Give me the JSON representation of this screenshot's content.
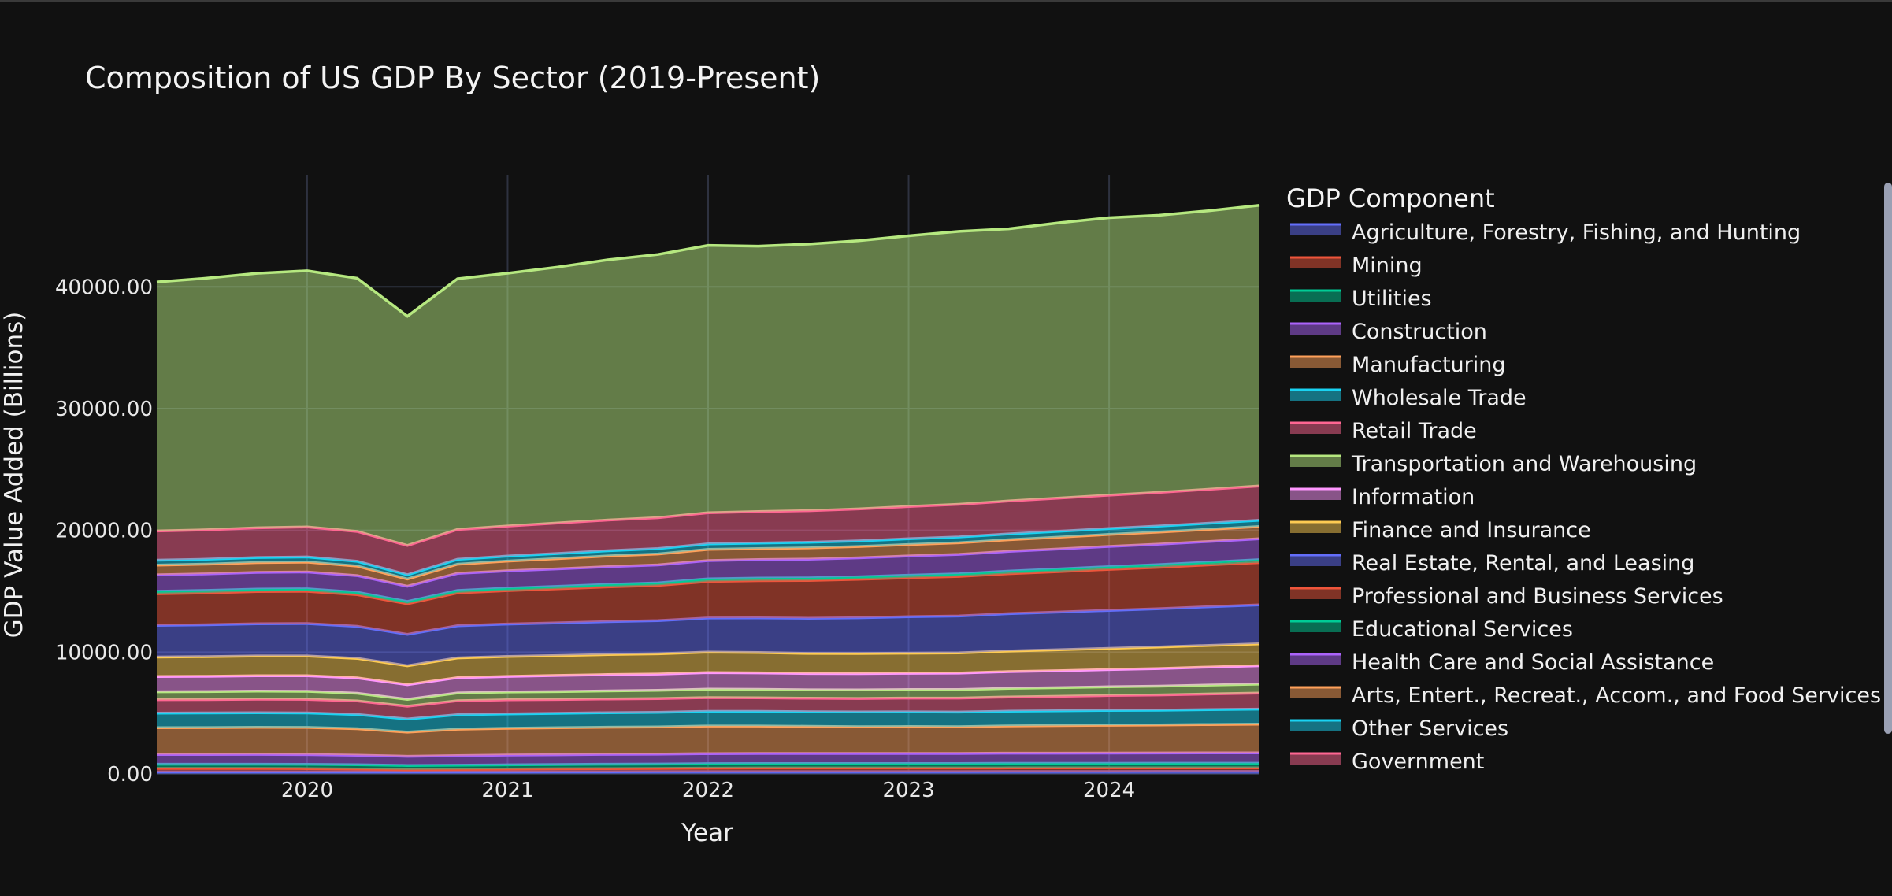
{
  "chart_data": {
    "type": "area",
    "stacked": true,
    "title": "Composition of US GDP By Sector (2019-Present)",
    "xlabel": "Year",
    "ylabel": "GDP Value Added (Billions)",
    "legend_title": "GDP Component",
    "legend_position": "right",
    "grid": true,
    "x": [
      2019.25,
      2019.5,
      2019.75,
      2020.0,
      2020.25,
      2020.5,
      2020.75,
      2021.0,
      2021.25,
      2021.5,
      2021.75,
      2022.0,
      2022.25,
      2022.5,
      2022.75,
      2023.0,
      2023.25,
      2023.5,
      2023.75,
      2024.0,
      2024.25,
      2024.5,
      2024.75
    ],
    "xlim": [
      2019.25,
      2024.75
    ],
    "x_ticks": [
      2020,
      2021,
      2022,
      2023,
      2024
    ],
    "x_tick_labels": [
      "2020",
      "2021",
      "2022",
      "2023",
      "2024"
    ],
    "ylim": [
      0,
      49200
    ],
    "y_ticks": [
      0,
      10000,
      20000,
      30000,
      40000
    ],
    "y_tick_labels": [
      "0.00",
      "10000.00",
      "20000.00",
      "30000.00",
      "40000.00"
    ],
    "series": [
      {
        "name": "Agriculture, Forestry, Fishing, and Hunting",
        "color": "#636efa",
        "values": [
          170,
          170,
          170,
          170,
          170,
          170,
          170,
          170,
          175,
          180,
          185,
          190,
          190,
          190,
          190,
          190,
          190,
          195,
          195,
          195,
          200,
          200,
          200
        ]
      },
      {
        "name": "Mining",
        "color": "#ef553b",
        "values": [
          280,
          280,
          280,
          270,
          240,
          180,
          200,
          230,
          250,
          260,
          270,
          290,
          300,
          300,
          300,
          300,
          300,
          300,
          300,
          300,
          300,
          300,
          300
        ]
      },
      {
        "name": "Utilities",
        "color": "#00cc96",
        "values": [
          350,
          350,
          350,
          350,
          350,
          350,
          350,
          350,
          350,
          360,
          360,
          370,
          370,
          370,
          370,
          370,
          370,
          380,
          380,
          380,
          380,
          380,
          380
        ]
      },
      {
        "name": "Construction",
        "color": "#ab63fa",
        "values": [
          800,
          800,
          810,
          800,
          780,
          750,
          780,
          800,
          800,
          810,
          810,
          820,
          820,
          820,
          820,
          820,
          820,
          830,
          830,
          840,
          840,
          850,
          850
        ]
      },
      {
        "name": "Manufacturing",
        "color": "#ffa15a",
        "values": [
          2200,
          2210,
          2220,
          2230,
          2180,
          1980,
          2180,
          2200,
          2220,
          2230,
          2240,
          2270,
          2260,
          2230,
          2200,
          2210,
          2200,
          2240,
          2270,
          2290,
          2300,
          2330,
          2360
        ]
      },
      {
        "name": "Wholesale Trade",
        "color": "#19d3f3",
        "values": [
          1200,
          1200,
          1200,
          1190,
          1160,
          1080,
          1180,
          1180,
          1180,
          1190,
          1200,
          1200,
          1200,
          1200,
          1210,
          1210,
          1200,
          1210,
          1210,
          1220,
          1220,
          1230,
          1240
        ]
      },
      {
        "name": "Retail Trade",
        "color": "#ff6692",
        "values": [
          1100,
          1100,
          1110,
          1120,
          1110,
          1050,
          1150,
          1160,
          1140,
          1130,
          1120,
          1130,
          1120,
          1110,
          1110,
          1130,
          1150,
          1170,
          1190,
          1220,
          1250,
          1280,
          1310
        ]
      },
      {
        "name": "Transportation and Warehousing",
        "color": "#b6e880",
        "values": [
          650,
          650,
          660,
          660,
          640,
          570,
          640,
          640,
          650,
          660,
          680,
          690,
          690,
          690,
          700,
          700,
          700,
          710,
          710,
          710,
          720,
          730,
          740
        ]
      },
      {
        "name": "Information",
        "color": "#ff97ff",
        "values": [
          1250,
          1260,
          1270,
          1280,
          1260,
          1200,
          1260,
          1280,
          1320,
          1340,
          1340,
          1370,
          1350,
          1340,
          1340,
          1340,
          1350,
          1370,
          1390,
          1420,
          1450,
          1480,
          1510
        ]
      },
      {
        "name": "Finance and Insurance",
        "color": "#fecb52",
        "values": [
          1600,
          1610,
          1620,
          1620,
          1600,
          1550,
          1620,
          1640,
          1640,
          1650,
          1660,
          1680,
          1670,
          1650,
          1650,
          1650,
          1660,
          1690,
          1720,
          1740,
          1760,
          1780,
          1800
        ]
      },
      {
        "name": "Real Estate, Rental, and Leasing",
        "color": "#636efa",
        "values": [
          2600,
          2620,
          2640,
          2660,
          2630,
          2580,
          2640,
          2660,
          2680,
          2700,
          2720,
          2800,
          2850,
          2890,
          2940,
          2990,
          3030,
          3070,
          3100,
          3120,
          3150,
          3170,
          3200
        ]
      },
      {
        "name": "Professional and Business Services",
        "color": "#ef553b",
        "values": [
          2600,
          2620,
          2650,
          2650,
          2600,
          2520,
          2700,
          2750,
          2800,
          2850,
          2900,
          3000,
          3050,
          3100,
          3150,
          3200,
          3250,
          3280,
          3320,
          3370,
          3400,
          3440,
          3470
        ]
      },
      {
        "name": "Educational Services",
        "color": "#00cc96",
        "values": [
          200,
          200,
          200,
          200,
          195,
          180,
          195,
          200,
          200,
          200,
          200,
          210,
          210,
          210,
          210,
          210,
          210,
          210,
          220,
          220,
          220,
          220,
          230
        ]
      },
      {
        "name": "Health Care and Social Assistance",
        "color": "#ab63fa",
        "values": [
          1350,
          1360,
          1370,
          1380,
          1370,
          1250,
          1400,
          1420,
          1440,
          1460,
          1480,
          1500,
          1520,
          1540,
          1560,
          1580,
          1600,
          1620,
          1640,
          1660,
          1680,
          1700,
          1720
        ]
      },
      {
        "name": "Arts, Entert., Recreat., Accom., and Food Services",
        "color": "#ffa15a",
        "values": [
          800,
          800,
          810,
          820,
          780,
          600,
          760,
          800,
          840,
          880,
          900,
          920,
          910,
          920,
          930,
          940,
          950,
          960,
          970,
          980,
          990,
          1000,
          1010
        ]
      },
      {
        "name": "Other Services",
        "color": "#19d3f3",
        "values": [
          400,
          400,
          410,
          420,
          400,
          350,
          400,
          410,
          420,
          430,
          440,
          450,
          450,
          460,
          460,
          470,
          480,
          480,
          490,
          490,
          500,
          500,
          510
        ]
      },
      {
        "name": "Government",
        "color": "#ff6692",
        "values": [
          2400,
          2420,
          2440,
          2460,
          2450,
          2400,
          2450,
          2470,
          2500,
          2520,
          2540,
          2560,
          2580,
          2600,
          2620,
          2650,
          2680,
          2700,
          2720,
          2740,
          2760,
          2790,
          2820
        ]
      },
      {
        "name": "Transportation and Warehousing",
        "color": "#b6e880",
        "values": [
          20450,
          20660,
          20900,
          21040,
          20790,
          18820,
          20590,
          20760,
          21020,
          21370,
          21610,
          21960,
          21800,
          21890,
          22020,
          22230,
          22410,
          22350,
          22600,
          22780,
          22760,
          22870,
          23050
        ]
      }
    ]
  }
}
